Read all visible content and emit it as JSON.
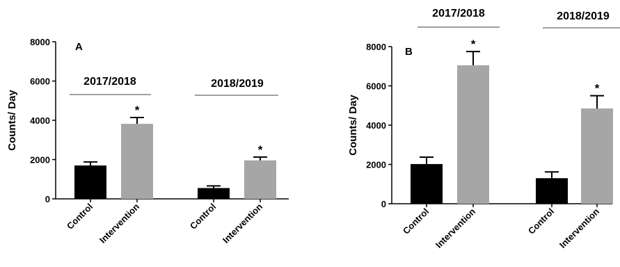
{
  "chart_data": [
    {
      "type": "bar",
      "panel_label": "A",
      "ylabel": "Counts/ Day",
      "ylim": [
        0,
        8000
      ],
      "yticks": [
        0,
        2000,
        4000,
        6000,
        8000
      ],
      "groups": [
        "2017/2018",
        "2018/2019"
      ],
      "categories": [
        "Control",
        "Intervention",
        "Control",
        "Intervention"
      ],
      "values": [
        1700,
        3820,
        550,
        1960
      ],
      "errors": [
        180,
        320,
        110,
        170
      ],
      "significance": [
        "",
        "*",
        "",
        "*"
      ],
      "colors": [
        "#000000",
        "#a6a6a6",
        "#000000",
        "#a6a6a6"
      ]
    },
    {
      "type": "bar",
      "panel_label": "B",
      "ylabel": "Counts/ Day",
      "ylim": [
        0,
        8000
      ],
      "yticks": [
        0,
        2000,
        4000,
        6000,
        8000
      ],
      "groups": [
        "2017/2018",
        "2018/2019"
      ],
      "categories": [
        "Control",
        "Intervention",
        "Control",
        "Intervention"
      ],
      "values": [
        2020,
        7050,
        1300,
        4850
      ],
      "errors": [
        350,
        700,
        320,
        650
      ],
      "significance": [
        "",
        "*",
        "",
        "*"
      ],
      "colors": [
        "#000000",
        "#a6a6a6",
        "#000000",
        "#a6a6a6"
      ]
    }
  ]
}
